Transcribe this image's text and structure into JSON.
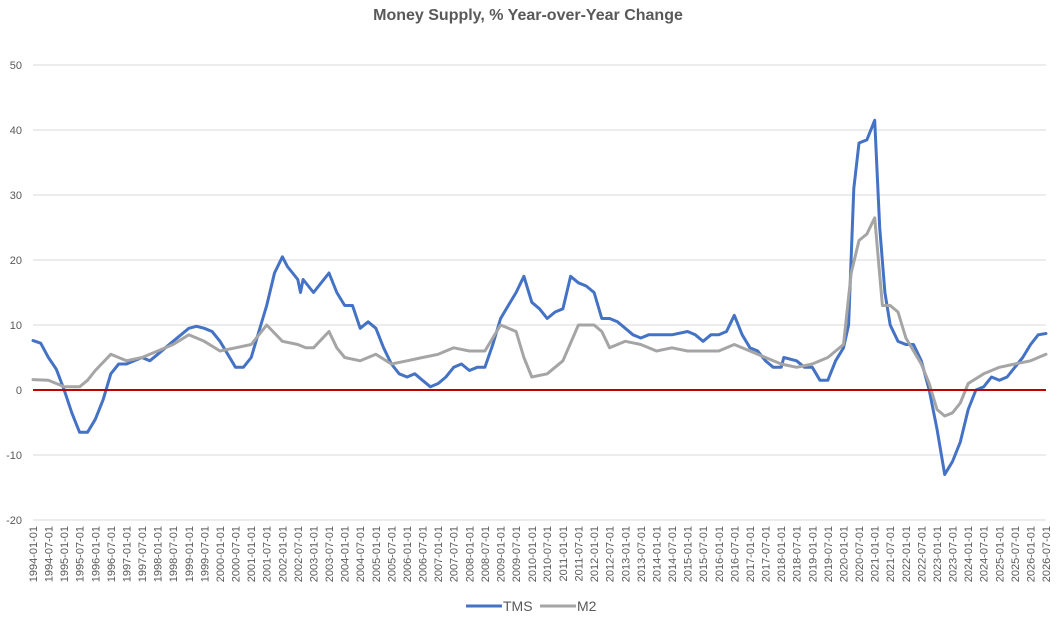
{
  "chart_data": {
    "type": "line",
    "title": "Money Supply, % Year-over-Year Change",
    "xlabel": "",
    "ylabel": "",
    "ylim": [
      -20,
      50
    ],
    "yticks": [
      -20,
      -10,
      0,
      10,
      20,
      30,
      40,
      50
    ],
    "x_start": "1994-01-01",
    "x_end": "2026-07-01",
    "x_tick_labels": [
      "1994-01-01",
      "1994-07-01",
      "1995-01-01",
      "1995-07-01",
      "1996-01-01",
      "1996-07-01",
      "1997-01-01",
      "1997-07-01",
      "1998-01-01",
      "1998-07-01",
      "1999-01-01",
      "1999-07-01",
      "2000-01-01",
      "2000-07-01",
      "2001-01-01",
      "2001-07-01",
      "2002-01-01",
      "2002-07-01",
      "2003-01-01",
      "2003-07-01",
      "2004-01-01",
      "2004-07-01",
      "2005-01-01",
      "2005-07-01",
      "2006-01-01",
      "2006-07-01",
      "2007-01-01",
      "2007-07-01",
      "2008-01-01",
      "2008-07-01",
      "2009-01-01",
      "2009-07-01",
      "2010-01-01",
      "2010-07-01",
      "2011-01-01",
      "2011-07-01",
      "2012-01-01",
      "2012-07-01",
      "2013-01-01",
      "2013-07-01",
      "2014-01-01",
      "2014-07-01",
      "2015-01-01",
      "2015-07-01",
      "2016-01-01",
      "2016-07-01",
      "2017-01-01",
      "2017-07-01",
      "2018-01-01",
      "2018-07-01",
      "2019-01-01",
      "2019-07-01",
      "2020-01-01",
      "2020-07-01",
      "2021-01-01",
      "2021-07-01",
      "2022-01-01",
      "2022-07-01",
      "2023-01-01",
      "2023-07-01",
      "2024-01-01",
      "2024-07-01",
      "2025-01-01",
      "2025-07-01",
      "2026-01-01",
      "2026-07-01"
    ],
    "zero_line_color": "#c00000",
    "grid": true,
    "legend_position": "bottom",
    "series": [
      {
        "name": "TMS",
        "color": "#4472c4",
        "points": [
          [
            "1994-01-01",
            7.6
          ],
          [
            "1994-04-01",
            7.2
          ],
          [
            "1994-07-01",
            5.0
          ],
          [
            "1994-10-01",
            3.2
          ],
          [
            "1995-01-01",
            0.0
          ],
          [
            "1995-04-01",
            -3.5
          ],
          [
            "1995-07-01",
            -6.5
          ],
          [
            "1995-10-01",
            -6.5
          ],
          [
            "1996-01-01",
            -4.5
          ],
          [
            "1996-04-01",
            -1.5
          ],
          [
            "1996-07-01",
            2.5
          ],
          [
            "1996-10-01",
            4.0
          ],
          [
            "1997-01-01",
            4.0
          ],
          [
            "1997-07-01",
            5.0
          ],
          [
            "1997-10-01",
            4.5
          ],
          [
            "1998-01-01",
            5.5
          ],
          [
            "1998-07-01",
            7.5
          ],
          [
            "1998-10-01",
            8.5
          ],
          [
            "1999-01-01",
            9.5
          ],
          [
            "1999-04-01",
            9.8
          ],
          [
            "1999-07-01",
            9.5
          ],
          [
            "1999-10-01",
            9.0
          ],
          [
            "2000-01-01",
            7.5
          ],
          [
            "2000-04-01",
            5.5
          ],
          [
            "2000-07-01",
            3.5
          ],
          [
            "2000-10-01",
            3.5
          ],
          [
            "2001-01-01",
            5.0
          ],
          [
            "2001-04-01",
            9.0
          ],
          [
            "2001-07-01",
            13.0
          ],
          [
            "2001-10-01",
            18.0
          ],
          [
            "2002-01-01",
            20.5
          ],
          [
            "2002-03-01",
            19.0
          ],
          [
            "2002-07-01",
            17.0
          ],
          [
            "2002-08-01",
            15.0
          ],
          [
            "2002-09-01",
            17.0
          ],
          [
            "2003-01-01",
            15.0
          ],
          [
            "2003-04-01",
            16.5
          ],
          [
            "2003-07-01",
            18.0
          ],
          [
            "2003-10-01",
            15.0
          ],
          [
            "2004-01-01",
            13.0
          ],
          [
            "2004-04-01",
            13.0
          ],
          [
            "2004-07-01",
            9.5
          ],
          [
            "2004-10-01",
            10.5
          ],
          [
            "2005-01-01",
            9.5
          ],
          [
            "2005-04-01",
            6.5
          ],
          [
            "2005-07-01",
            4.0
          ],
          [
            "2005-10-01",
            2.5
          ],
          [
            "2006-01-01",
            2.0
          ],
          [
            "2006-04-01",
            2.5
          ],
          [
            "2006-07-01",
            1.5
          ],
          [
            "2006-10-01",
            0.5
          ],
          [
            "2007-01-01",
            1.0
          ],
          [
            "2007-04-01",
            2.0
          ],
          [
            "2007-07-01",
            3.5
          ],
          [
            "2007-10-01",
            4.0
          ],
          [
            "2008-01-01",
            3.0
          ],
          [
            "2008-04-01",
            3.5
          ],
          [
            "2008-07-01",
            3.5
          ],
          [
            "2008-10-01",
            7.0
          ],
          [
            "2009-01-01",
            11.0
          ],
          [
            "2009-04-01",
            13.0
          ],
          [
            "2009-07-01",
            15.0
          ],
          [
            "2009-10-01",
            17.5
          ],
          [
            "2010-01-01",
            13.5
          ],
          [
            "2010-04-01",
            12.5
          ],
          [
            "2010-07-01",
            11.0
          ],
          [
            "2010-10-01",
            12.0
          ],
          [
            "2011-01-01",
            12.5
          ],
          [
            "2011-04-01",
            17.5
          ],
          [
            "2011-07-01",
            16.5
          ],
          [
            "2011-10-01",
            16.0
          ],
          [
            "2012-01-01",
            15.0
          ],
          [
            "2012-04-01",
            11.0
          ],
          [
            "2012-07-01",
            11.0
          ],
          [
            "2012-10-01",
            10.5
          ],
          [
            "2013-01-01",
            9.5
          ],
          [
            "2013-04-01",
            8.5
          ],
          [
            "2013-07-01",
            8.0
          ],
          [
            "2013-10-01",
            8.5
          ],
          [
            "2014-01-01",
            8.5
          ],
          [
            "2014-07-01",
            8.5
          ],
          [
            "2015-01-01",
            9.0
          ],
          [
            "2015-04-01",
            8.5
          ],
          [
            "2015-07-01",
            7.5
          ],
          [
            "2015-10-01",
            8.5
          ],
          [
            "2016-01-01",
            8.5
          ],
          [
            "2016-04-01",
            9.0
          ],
          [
            "2016-07-01",
            11.5
          ],
          [
            "2016-10-01",
            8.5
          ],
          [
            "2017-01-01",
            6.5
          ],
          [
            "2017-04-01",
            6.0
          ],
          [
            "2017-07-01",
            4.5
          ],
          [
            "2017-10-01",
            3.5
          ],
          [
            "2018-01-01",
            3.5
          ],
          [
            "2018-02-01",
            5.0
          ],
          [
            "2018-07-01",
            4.5
          ],
          [
            "2018-10-01",
            3.5
          ],
          [
            "2019-01-01",
            3.5
          ],
          [
            "2019-04-01",
            1.5
          ],
          [
            "2019-07-01",
            1.5
          ],
          [
            "2019-10-01",
            4.5
          ],
          [
            "2020-01-01",
            6.5
          ],
          [
            "2020-03-01",
            10.0
          ],
          [
            "2020-05-01",
            31.0
          ],
          [
            "2020-07-01",
            38.0
          ],
          [
            "2020-10-01",
            38.5
          ],
          [
            "2021-01-01",
            41.5
          ],
          [
            "2021-03-01",
            25.0
          ],
          [
            "2021-05-01",
            15.0
          ],
          [
            "2021-07-01",
            10.0
          ],
          [
            "2021-10-01",
            7.5
          ],
          [
            "2022-01-01",
            7.0
          ],
          [
            "2022-04-01",
            7.0
          ],
          [
            "2022-07-01",
            4.5
          ],
          [
            "2022-10-01",
            0.0
          ],
          [
            "2023-01-01",
            -6.0
          ],
          [
            "2023-04-01",
            -13.0
          ],
          [
            "2023-07-01",
            -11.0
          ],
          [
            "2023-10-01",
            -8.0
          ],
          [
            "2024-01-01",
            -3.0
          ],
          [
            "2024-04-01",
            0.0
          ],
          [
            "2024-07-01",
            0.5
          ],
          [
            "2024-10-01",
            2.0
          ],
          [
            "2025-01-01",
            1.5
          ],
          [
            "2025-04-01",
            2.0
          ],
          [
            "2025-07-01",
            3.5
          ],
          [
            "2025-10-01",
            5.0
          ],
          [
            "2026-01-01",
            7.0
          ],
          [
            "2026-04-01",
            8.5
          ],
          [
            "2026-07-01",
            8.7
          ]
        ]
      },
      {
        "name": "M2",
        "color": "#a5a5a5",
        "points": [
          [
            "1994-01-01",
            1.6
          ],
          [
            "1994-07-01",
            1.5
          ],
          [
            "1995-01-01",
            0.5
          ],
          [
            "1995-07-01",
            0.5
          ],
          [
            "1995-10-01",
            1.5
          ],
          [
            "1996-01-01",
            3.0
          ],
          [
            "1996-07-01",
            5.5
          ],
          [
            "1997-01-01",
            4.5
          ],
          [
            "1997-07-01",
            5.0
          ],
          [
            "1998-01-01",
            6.0
          ],
          [
            "1998-07-01",
            7.0
          ],
          [
            "1999-01-01",
            8.5
          ],
          [
            "1999-07-01",
            7.5
          ],
          [
            "2000-01-01",
            6.0
          ],
          [
            "2000-07-01",
            6.5
          ],
          [
            "2001-01-01",
            7.0
          ],
          [
            "2001-07-01",
            10.0
          ],
          [
            "2002-01-01",
            7.5
          ],
          [
            "2002-07-01",
            7.0
          ],
          [
            "2002-10-01",
            6.5
          ],
          [
            "2003-01-01",
            6.5
          ],
          [
            "2003-07-01",
            9.0
          ],
          [
            "2003-10-01",
            6.5
          ],
          [
            "2004-01-01",
            5.0
          ],
          [
            "2004-07-01",
            4.5
          ],
          [
            "2005-01-01",
            5.5
          ],
          [
            "2005-07-01",
            4.0
          ],
          [
            "2006-01-01",
            4.5
          ],
          [
            "2006-07-01",
            5.0
          ],
          [
            "2007-01-01",
            5.5
          ],
          [
            "2007-07-01",
            6.5
          ],
          [
            "2008-01-01",
            6.0
          ],
          [
            "2008-07-01",
            6.0
          ],
          [
            "2009-01-01",
            10.0
          ],
          [
            "2009-07-01",
            9.0
          ],
          [
            "2009-10-01",
            5.0
          ],
          [
            "2010-01-01",
            2.0
          ],
          [
            "2010-07-01",
            2.5
          ],
          [
            "2011-01-01",
            4.5
          ],
          [
            "2011-07-01",
            10.0
          ],
          [
            "2012-01-01",
            10.0
          ],
          [
            "2012-04-01",
            9.0
          ],
          [
            "2012-07-01",
            6.5
          ],
          [
            "2013-01-01",
            7.5
          ],
          [
            "2013-07-01",
            7.0
          ],
          [
            "2014-01-01",
            6.0
          ],
          [
            "2014-07-01",
            6.5
          ],
          [
            "2015-01-01",
            6.0
          ],
          [
            "2015-07-01",
            6.0
          ],
          [
            "2016-01-01",
            6.0
          ],
          [
            "2016-07-01",
            7.0
          ],
          [
            "2017-01-01",
            6.0
          ],
          [
            "2017-07-01",
            5.0
          ],
          [
            "2018-01-01",
            4.0
          ],
          [
            "2018-07-01",
            3.5
          ],
          [
            "2019-01-01",
            4.0
          ],
          [
            "2019-07-01",
            5.0
          ],
          [
            "2020-01-01",
            7.0
          ],
          [
            "2020-04-01",
            18.0
          ],
          [
            "2020-07-01",
            23.0
          ],
          [
            "2020-10-01",
            24.0
          ],
          [
            "2021-01-01",
            26.5
          ],
          [
            "2021-04-01",
            13.0
          ],
          [
            "2021-07-01",
            13.0
          ],
          [
            "2021-10-01",
            12.0
          ],
          [
            "2022-01-01",
            8.0
          ],
          [
            "2022-07-01",
            4.0
          ],
          [
            "2022-10-01",
            1.0
          ],
          [
            "2023-01-01",
            -3.0
          ],
          [
            "2023-04-01",
            -4.0
          ],
          [
            "2023-07-01",
            -3.5
          ],
          [
            "2023-10-01",
            -2.0
          ],
          [
            "2024-01-01",
            1.0
          ],
          [
            "2024-07-01",
            2.5
          ],
          [
            "2025-01-01",
            3.5
          ],
          [
            "2025-07-01",
            4.0
          ],
          [
            "2026-01-01",
            4.5
          ],
          [
            "2026-07-01",
            5.5
          ]
        ]
      }
    ]
  }
}
